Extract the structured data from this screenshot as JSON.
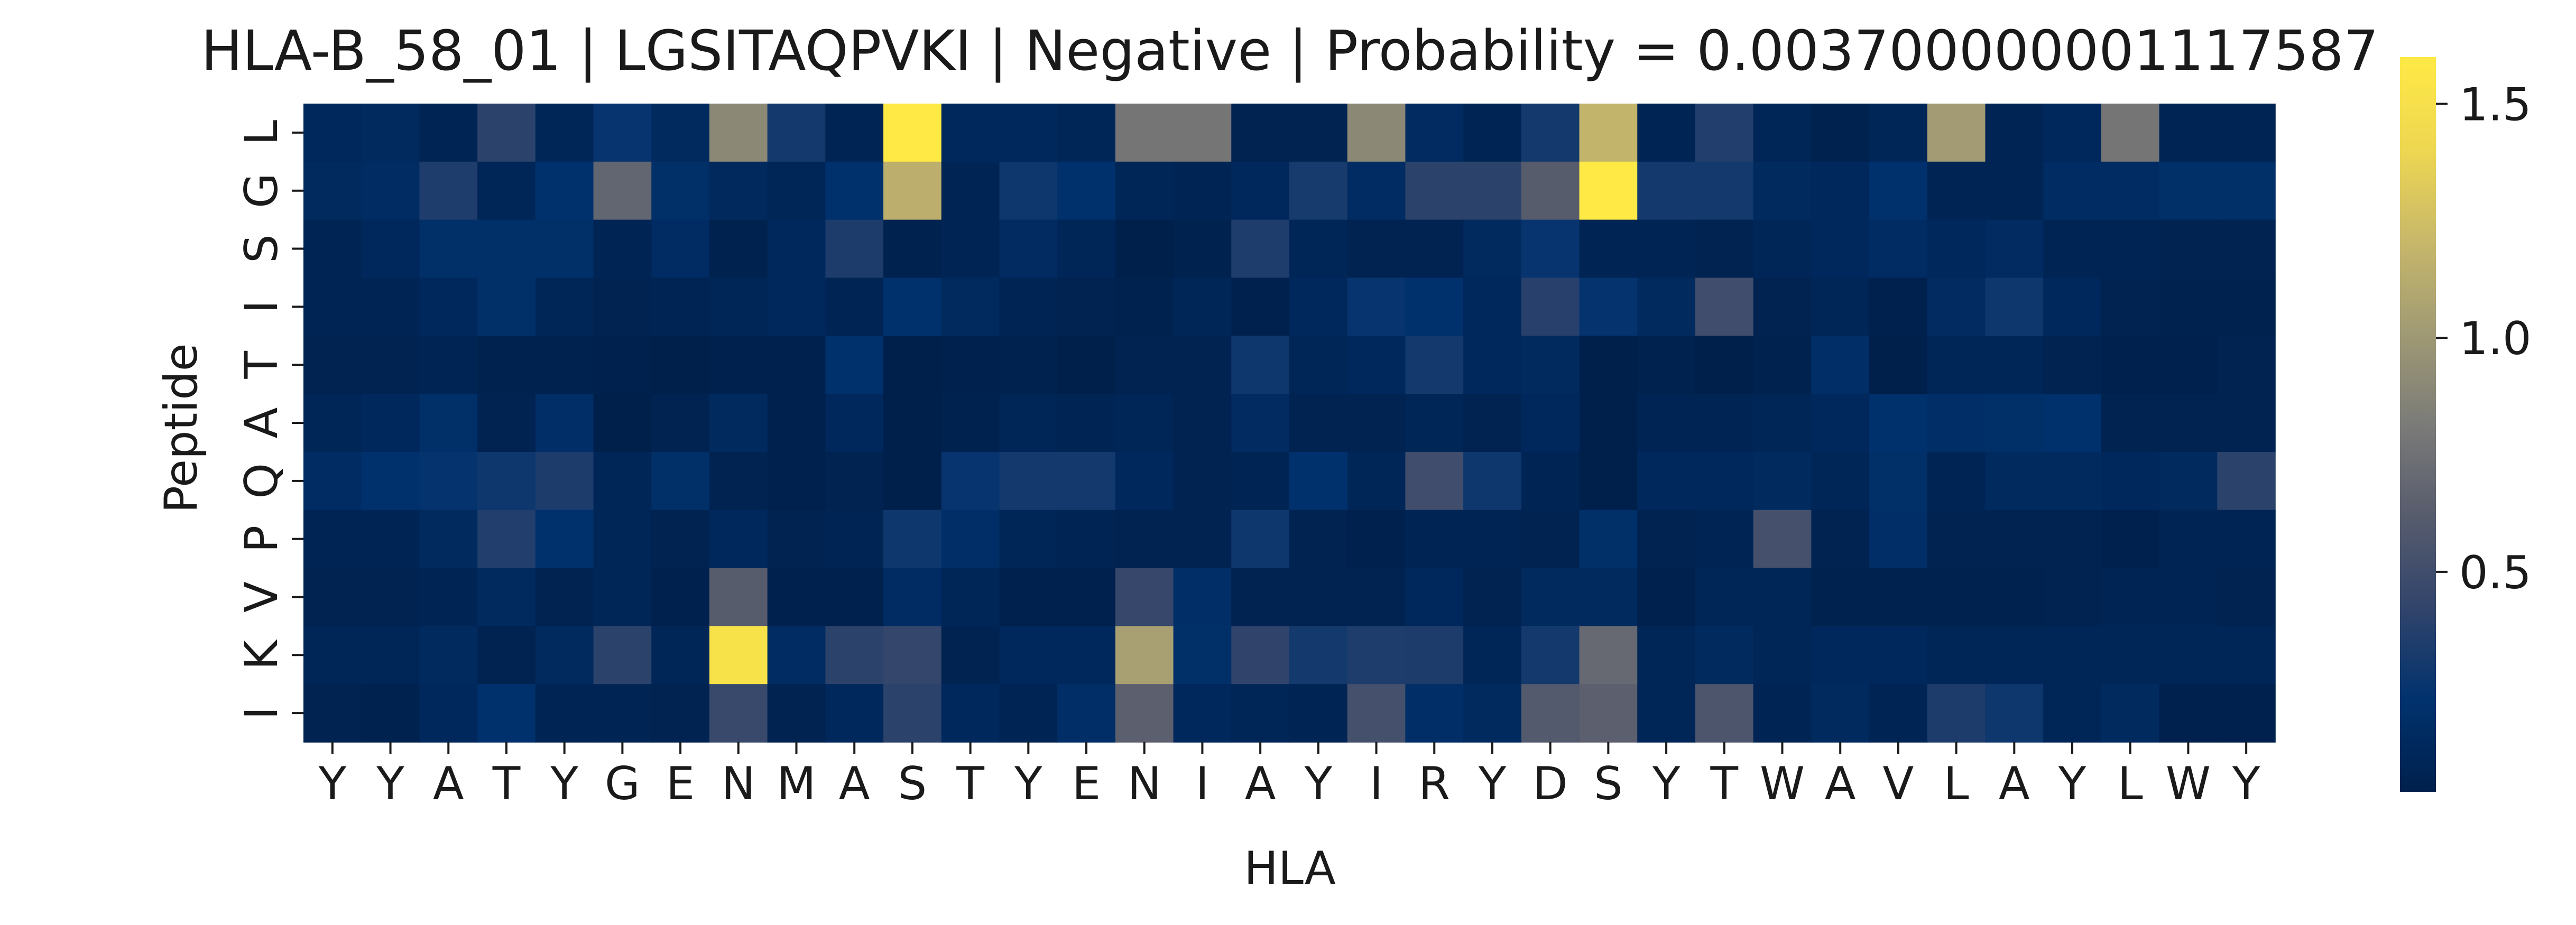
{
  "chart_data": {
    "type": "heatmap",
    "title": "HLA-B_58_01 | LGSITAQPVKI | Negative | Probability = 0.003700000001117587",
    "xlabel": "HLA",
    "ylabel": "Peptide",
    "x_categories": [
      "Y",
      "Y",
      "A",
      "T",
      "Y",
      "G",
      "E",
      "N",
      "M",
      "A",
      "S",
      "T",
      "Y",
      "E",
      "N",
      "I",
      "A",
      "Y",
      "I",
      "R",
      "Y",
      "D",
      "S",
      "Y",
      "T",
      "W",
      "A",
      "V",
      "L",
      "A",
      "Y",
      "L",
      "W",
      "Y"
    ],
    "y_categories": [
      "L",
      "G",
      "S",
      "I",
      "T",
      "A",
      "Q",
      "P",
      "V",
      "K",
      "I"
    ],
    "colormap": "cividis",
    "colorbar": {
      "vmin": 0.03,
      "vmax": 1.6,
      "ticks": [
        0.5,
        1.0,
        1.5
      ],
      "tick_labels": [
        "0.5",
        "1.0",
        "1.5"
      ]
    },
    "values": [
      [
        0.12,
        0.14,
        0.07,
        0.4,
        0.1,
        0.25,
        0.14,
        0.9,
        0.3,
        0.08,
        1.62,
        0.12,
        0.12,
        0.1,
        0.78,
        0.78,
        0.06,
        0.06,
        0.9,
        0.15,
        0.08,
        0.3,
        1.18,
        0.08,
        0.36,
        0.1,
        0.05,
        0.1,
        1.02,
        0.08,
        0.12,
        0.78,
        0.07,
        0.07
      ],
      [
        0.14,
        0.16,
        0.35,
        0.1,
        0.22,
        0.68,
        0.2,
        0.13,
        0.1,
        0.22,
        1.15,
        0.08,
        0.28,
        0.22,
        0.1,
        0.08,
        0.12,
        0.32,
        0.16,
        0.4,
        0.4,
        0.62,
        1.6,
        0.3,
        0.3,
        0.14,
        0.12,
        0.22,
        0.08,
        0.08,
        0.16,
        0.16,
        0.2,
        0.2
      ],
      [
        0.08,
        0.12,
        0.2,
        0.2,
        0.2,
        0.08,
        0.16,
        0.05,
        0.12,
        0.34,
        0.05,
        0.08,
        0.15,
        0.1,
        0.03,
        0.05,
        0.35,
        0.1,
        0.06,
        0.06,
        0.14,
        0.25,
        0.07,
        0.07,
        0.06,
        0.1,
        0.12,
        0.16,
        0.12,
        0.15,
        0.08,
        0.08,
        0.06,
        0.06
      ],
      [
        0.08,
        0.07,
        0.12,
        0.2,
        0.1,
        0.06,
        0.08,
        0.1,
        0.12,
        0.08,
        0.22,
        0.14,
        0.08,
        0.06,
        0.05,
        0.1,
        0.04,
        0.12,
        0.25,
        0.22,
        0.12,
        0.38,
        0.24,
        0.14,
        0.5,
        0.06,
        0.1,
        0.04,
        0.15,
        0.28,
        0.12,
        0.06,
        0.05,
        0.05
      ],
      [
        0.06,
        0.06,
        0.08,
        0.05,
        0.05,
        0.04,
        0.02,
        0.04,
        0.04,
        0.22,
        0.02,
        0.04,
        0.05,
        0.03,
        0.06,
        0.06,
        0.28,
        0.1,
        0.12,
        0.3,
        0.12,
        0.14,
        0.02,
        0.05,
        0.03,
        0.05,
        0.18,
        0.03,
        0.1,
        0.1,
        0.06,
        0.04,
        0.04,
        0.06
      ],
      [
        0.1,
        0.12,
        0.2,
        0.06,
        0.18,
        0.03,
        0.06,
        0.14,
        0.04,
        0.12,
        0.02,
        0.05,
        0.1,
        0.07,
        0.1,
        0.06,
        0.15,
        0.06,
        0.06,
        0.1,
        0.06,
        0.12,
        0.03,
        0.08,
        0.08,
        0.1,
        0.12,
        0.22,
        0.18,
        0.2,
        0.22,
        0.06,
        0.06,
        0.06
      ],
      [
        0.16,
        0.22,
        0.24,
        0.28,
        0.34,
        0.1,
        0.2,
        0.06,
        0.04,
        0.06,
        0.03,
        0.25,
        0.3,
        0.3,
        0.12,
        0.06,
        0.08,
        0.22,
        0.1,
        0.5,
        0.28,
        0.08,
        0.02,
        0.12,
        0.12,
        0.14,
        0.1,
        0.2,
        0.08,
        0.14,
        0.14,
        0.12,
        0.14,
        0.4
      ],
      [
        0.08,
        0.08,
        0.14,
        0.36,
        0.22,
        0.1,
        0.06,
        0.12,
        0.06,
        0.08,
        0.28,
        0.18,
        0.1,
        0.08,
        0.06,
        0.06,
        0.28,
        0.06,
        0.04,
        0.08,
        0.08,
        0.06,
        0.2,
        0.06,
        0.08,
        0.52,
        0.06,
        0.18,
        0.06,
        0.06,
        0.06,
        0.04,
        0.08,
        0.08
      ],
      [
        0.06,
        0.06,
        0.08,
        0.14,
        0.06,
        0.1,
        0.04,
        0.62,
        0.04,
        0.04,
        0.16,
        0.1,
        0.04,
        0.04,
        0.45,
        0.18,
        0.06,
        0.06,
        0.06,
        0.12,
        0.06,
        0.14,
        0.14,
        0.04,
        0.1,
        0.1,
        0.05,
        0.05,
        0.05,
        0.05,
        0.06,
        0.08,
        0.08,
        0.06
      ],
      [
        0.1,
        0.1,
        0.14,
        0.06,
        0.14,
        0.4,
        0.1,
        1.52,
        0.16,
        0.4,
        0.44,
        0.06,
        0.12,
        0.12,
        1.05,
        0.2,
        0.42,
        0.3,
        0.35,
        0.34,
        0.1,
        0.3,
        0.7,
        0.1,
        0.14,
        0.1,
        0.12,
        0.12,
        0.1,
        0.1,
        0.1,
        0.1,
        0.1,
        0.1
      ],
      [
        0.06,
        0.05,
        0.12,
        0.22,
        0.08,
        0.08,
        0.06,
        0.46,
        0.06,
        0.12,
        0.4,
        0.12,
        0.08,
        0.18,
        0.64,
        0.12,
        0.1,
        0.08,
        0.52,
        0.18,
        0.14,
        0.6,
        0.64,
        0.1,
        0.56,
        0.08,
        0.14,
        0.08,
        0.34,
        0.28,
        0.1,
        0.14,
        0.04,
        0.04
      ]
    ]
  }
}
